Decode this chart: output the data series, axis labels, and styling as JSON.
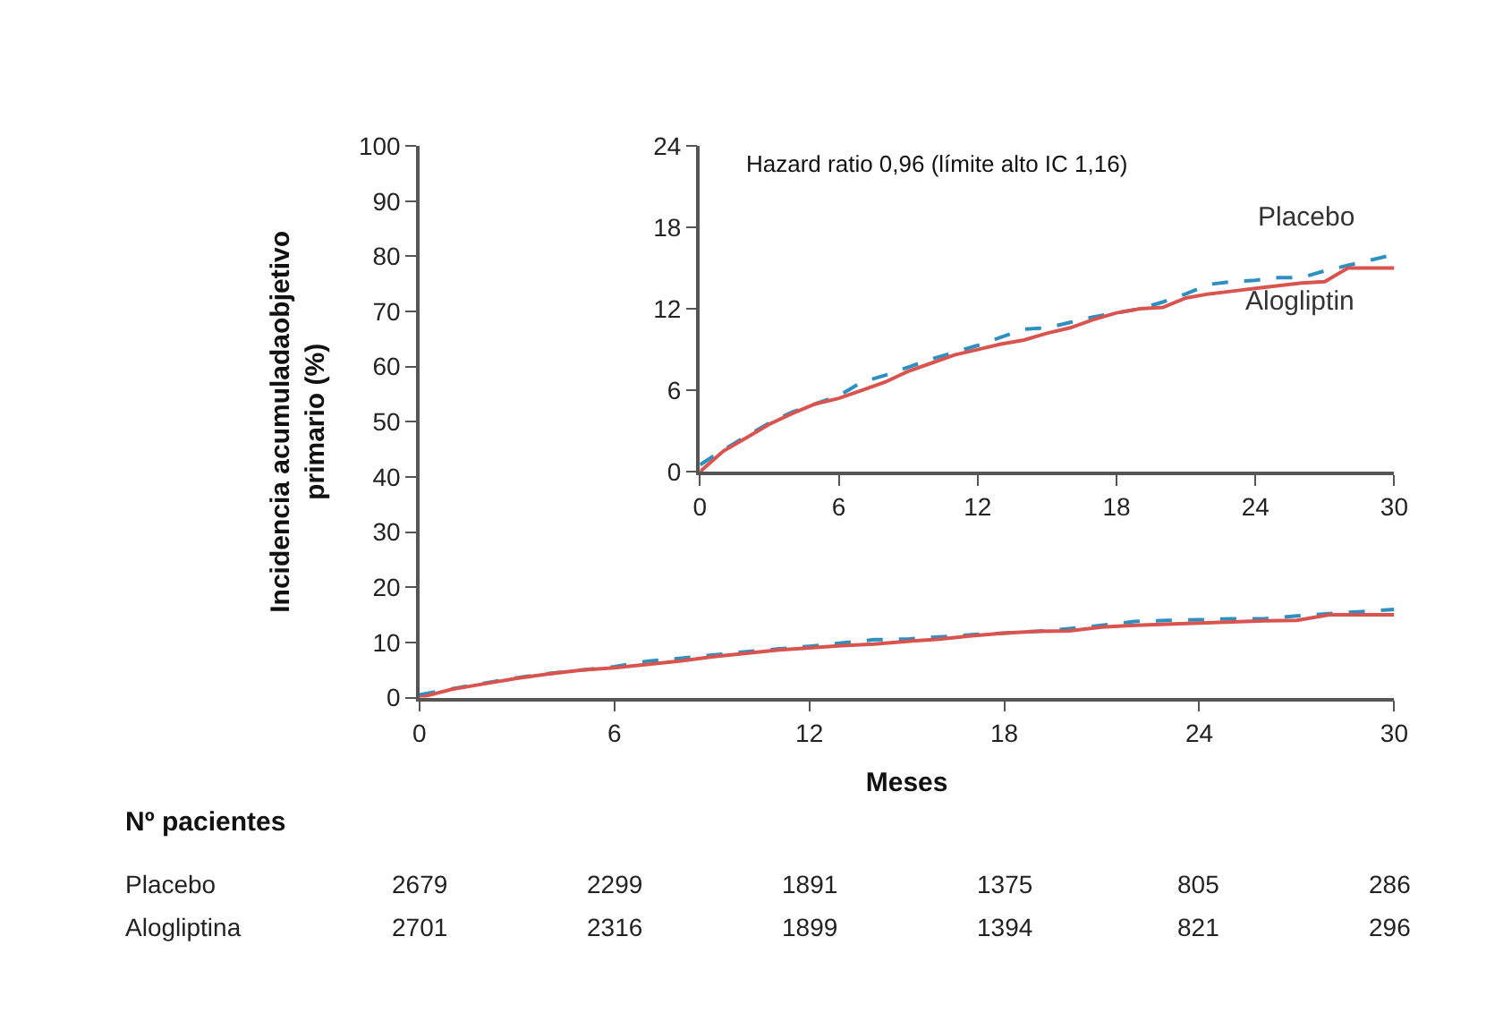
{
  "chart_data": [
    {
      "type": "line",
      "xlabel": "Meses",
      "ylabel": "Incidencia acumuladaobjetivo\nprimario (%)",
      "x": [
        0,
        1,
        2,
        3,
        4,
        5,
        6,
        7,
        8,
        9,
        10,
        11,
        12,
        13,
        14,
        15,
        16,
        17,
        18,
        19,
        20,
        21,
        22,
        23,
        24,
        25,
        26,
        27,
        28,
        29,
        30
      ],
      "series": [
        {
          "color": "#2f8fc0",
          "line_style": "dashed",
          "values": [
            0.5,
            1.6,
            2.6,
            3.6,
            4.4,
            5.0,
            5.6,
            6.6,
            7.1,
            7.7,
            8.3,
            8.8,
            9.3,
            9.9,
            10.5,
            10.6,
            11.0,
            11.4,
            11.7,
            12.0,
            12.5,
            13.1,
            13.8,
            14.0,
            14.1,
            14.3,
            14.3,
            14.8,
            15.2,
            15.6,
            16.0
          ]
        },
        {
          "color": "#d9534f",
          "line_style": "solid",
          "values": [
            0,
            1.5,
            2.5,
            3.5,
            4.3,
            5.0,
            5.4,
            6.0,
            6.6,
            7.4,
            8.0,
            8.6,
            9.0,
            9.4,
            9.7,
            10.2,
            10.6,
            11.2,
            11.7,
            12.0,
            12.1,
            12.8,
            13.1,
            13.3,
            13.5,
            13.7,
            13.9,
            14.0,
            15.0,
            15.0,
            15.0
          ]
        }
      ],
      "xlim": [
        0,
        30
      ],
      "xticks": [
        0,
        6,
        12,
        18,
        24,
        30
      ],
      "ylim": [
        0,
        100
      ],
      "yticks": [
        0,
        10,
        20,
        30,
        40,
        50,
        60,
        70,
        80,
        90,
        100
      ],
      "marker": "none",
      "annotations": [
        "Nº pacientes",
        "Placebo",
        "2679",
        "2299",
        "1891",
        "1375",
        "805",
        "286",
        "Alogliptina",
        "2701",
        "2316",
        "1899",
        "1394",
        "821",
        "296"
      ]
    },
    {
      "type": "line",
      "title": "Hazard ratio 0,96 (límite alto IC 1,16)",
      "x": [
        0,
        1,
        2,
        3,
        4,
        5,
        6,
        7,
        8,
        9,
        10,
        11,
        12,
        13,
        14,
        15,
        16,
        17,
        18,
        19,
        20,
        21,
        22,
        23,
        24,
        25,
        26,
        27,
        28,
        29,
        30
      ],
      "series": [
        {
          "name": "Placebo",
          "color": "#2f8fc0",
          "line_style": "dashed",
          "values": [
            0.5,
            1.6,
            2.6,
            3.6,
            4.4,
            5.0,
            5.6,
            6.6,
            7.1,
            7.7,
            8.3,
            8.8,
            9.3,
            9.9,
            10.5,
            10.6,
            11.0,
            11.4,
            11.7,
            12.0,
            12.5,
            13.1,
            13.8,
            14.0,
            14.1,
            14.3,
            14.3,
            14.8,
            15.2,
            15.6,
            16.0
          ]
        },
        {
          "name": "Alogliptin",
          "color": "#d9534f",
          "line_style": "solid",
          "values": [
            0,
            1.5,
            2.5,
            3.5,
            4.3,
            5.0,
            5.4,
            6.0,
            6.6,
            7.4,
            8.0,
            8.6,
            9.0,
            9.4,
            9.7,
            10.2,
            10.6,
            11.2,
            11.7,
            12.0,
            12.1,
            12.8,
            13.1,
            13.3,
            13.5,
            13.7,
            13.9,
            14.0,
            15.0,
            15.0,
            15.0
          ]
        }
      ],
      "xlim": [
        0,
        30
      ],
      "xticks": [
        0,
        6,
        12,
        18,
        24,
        30
      ],
      "ylim": [
        0,
        24
      ],
      "yticks": [
        0,
        6,
        12,
        18,
        24
      ],
      "marker": "none"
    }
  ]
}
